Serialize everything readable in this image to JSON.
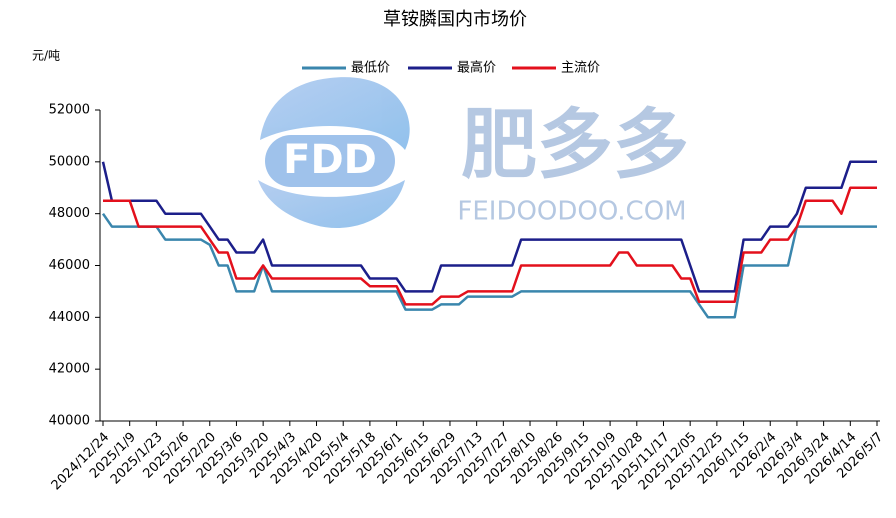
{
  "chart_data": {
    "type": "line",
    "title": "草铵膦国内市场价",
    "y_label": "元/吨",
    "watermark": {
      "logo": "FDD",
      "name": "肥多多",
      "site": "FEIDOODOO.COM"
    },
    "categories": [
      "2024/12/24",
      null,
      null,
      "2025/1/9",
      null,
      null,
      "2025/1/23",
      null,
      null,
      "2025/2/6",
      null,
      null,
      "2025/2/20",
      null,
      null,
      "2025/3/6",
      null,
      null,
      "2025/3/20",
      null,
      null,
      "2025/4/3",
      null,
      null,
      "2025/4/20",
      null,
      null,
      "2025/5/4",
      null,
      null,
      "2025/5/18",
      null,
      null,
      "2025/6/1",
      null,
      null,
      "2025/6/15",
      null,
      null,
      "2025/6/29",
      null,
      null,
      "2025/7/13",
      null,
      null,
      "2025/7/27",
      null,
      null,
      "2025/8/10",
      null,
      null,
      "2025/8/26",
      null,
      null,
      "2025/9/15",
      null,
      null,
      "2025/10/9",
      null,
      null,
      "2025/10/28",
      null,
      null,
      "2025/11/17",
      null,
      null,
      "2025/12/05",
      null,
      null,
      "2025/12/25",
      null,
      null,
      "2026/1/15",
      null,
      null,
      "2026/2/4",
      null,
      null,
      "2026/3/4",
      null,
      null,
      "2026/3/24",
      null,
      null,
      "2026/4/14",
      null,
      null,
      "2026/5/7"
    ],
    "series": [
      {
        "name": "最低价",
        "color": "#3a86ad",
        "values": [
          48000,
          47500,
          47500,
          47500,
          47500,
          47500,
          47500,
          47000,
          47000,
          47000,
          47000,
          47000,
          46800,
          46000,
          46000,
          45000,
          45000,
          45000,
          46000,
          45000,
          45000,
          45000,
          45000,
          45000,
          45000,
          45000,
          45000,
          45000,
          45000,
          45000,
          45000,
          45000,
          45000,
          45000,
          44300,
          44300,
          44300,
          44300,
          44500,
          44500,
          44500,
          44800,
          44800,
          44800,
          44800,
          44800,
          44800,
          45000,
          45000,
          45000,
          45000,
          45000,
          45000,
          45000,
          45000,
          45000,
          45000,
          45000,
          45000,
          45000,
          45000,
          45000,
          45000,
          45000,
          45000,
          45000,
          45000,
          44500,
          44000,
          44000,
          44000,
          44000,
          46000,
          46000,
          46000,
          46000,
          46000,
          46000,
          47500,
          47500,
          47500,
          47500,
          47500,
          47500,
          47500,
          47500,
          47500,
          47500
        ]
      },
      {
        "name": "最高价",
        "color": "#1c1f8a",
        "values": [
          50000,
          48500,
          48500,
          48500,
          48500,
          48500,
          48500,
          48000,
          48000,
          48000,
          48000,
          48000,
          47500,
          47000,
          47000,
          46500,
          46500,
          46500,
          47000,
          46000,
          46000,
          46000,
          46000,
          46000,
          46000,
          46000,
          46000,
          46000,
          46000,
          46000,
          45500,
          45500,
          45500,
          45500,
          45000,
          45000,
          45000,
          45000,
          46000,
          46000,
          46000,
          46000,
          46000,
          46000,
          46000,
          46000,
          46000,
          47000,
          47000,
          47000,
          47000,
          47000,
          47000,
          47000,
          47000,
          47000,
          47000,
          47000,
          47000,
          47000,
          47000,
          47000,
          47000,
          47000,
          47000,
          47000,
          46000,
          45000,
          45000,
          45000,
          45000,
          45000,
          47000,
          47000,
          47000,
          47500,
          47500,
          47500,
          48000,
          49000,
          49000,
          49000,
          49000,
          49000,
          50000,
          50000,
          50000,
          50000
        ]
      },
      {
        "name": "主流价",
        "color": "#e3101c",
        "values": [
          48500,
          48500,
          48500,
          48500,
          47500,
          47500,
          47500,
          47500,
          47500,
          47500,
          47500,
          47500,
          47000,
          46500,
          46500,
          45500,
          45500,
          45500,
          46000,
          45500,
          45500,
          45500,
          45500,
          45500,
          45500,
          45500,
          45500,
          45500,
          45500,
          45500,
          45200,
          45200,
          45200,
          45200,
          44500,
          44500,
          44500,
          44500,
          44800,
          44800,
          44800,
          45000,
          45000,
          45000,
          45000,
          45000,
          45000,
          46000,
          46000,
          46000,
          46000,
          46000,
          46000,
          46000,
          46000,
          46000,
          46000,
          46000,
          46500,
          46500,
          46000,
          46000,
          46000,
          46000,
          46000,
          45500,
          45500,
          44600,
          44600,
          44600,
          44600,
          44600,
          46500,
          46500,
          46500,
          47000,
          47000,
          47000,
          47500,
          48500,
          48500,
          48500,
          48500,
          48000,
          49000,
          49000,
          49000,
          49000
        ]
      }
    ],
    "ylim": [
      40000,
      52000
    ],
    "yticks": [
      40000,
      42000,
      44000,
      46000,
      48000,
      50000,
      52000
    ],
    "legend": "top"
  }
}
